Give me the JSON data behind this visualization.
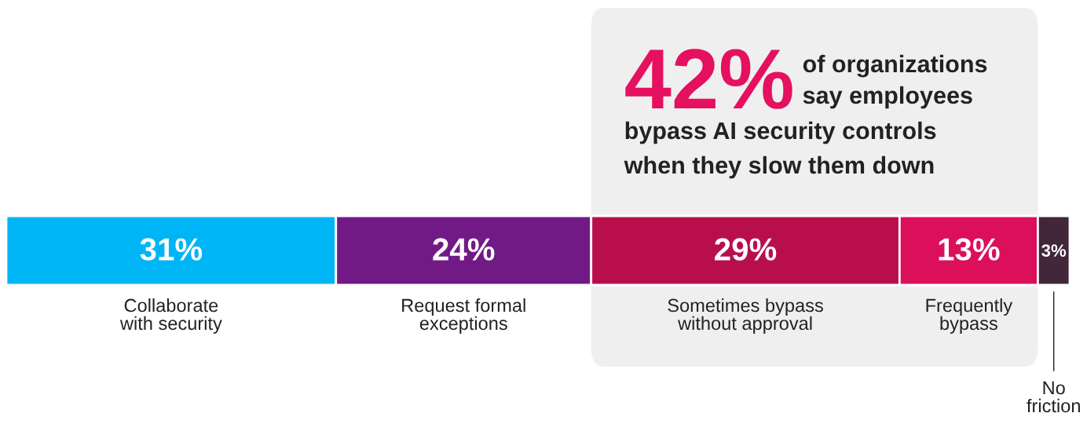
{
  "chart_data": {
    "type": "bar",
    "orientation": "horizontal",
    "stacked": true,
    "categories": [
      null
    ],
    "series": [
      {
        "name": "Collaborate\nwith security",
        "color": "#00b5f5",
        "values": [
          31
        ],
        "value_labels": [
          "31%"
        ]
      },
      {
        "name": "Request formal\nexceptions",
        "color": "#711a85",
        "values": [
          24
        ],
        "value_labels": [
          "24%"
        ]
      },
      {
        "name": "Sometimes bypass\nwithout approval",
        "color": "#b80f4c",
        "values": [
          29
        ],
        "value_labels": [
          "29%"
        ]
      },
      {
        "name": "Frequently\nbypass",
        "color": "#dc0f5a",
        "values": [
          13
        ],
        "value_labels": [
          "13%"
        ]
      },
      {
        "name": "No\nfriction",
        "color": "#42263a",
        "values": [
          3
        ],
        "value_labels": [
          "3%"
        ]
      }
    ],
    "bands": [
      {
        "axis": "x",
        "from": 55,
        "to": 97,
        "color": "#efefef"
      }
    ],
    "annotations": [
      "42%",
      "of organizations\nsay employees\nbypass AI security controls\nwhen they slow them down"
    ],
    "legend": false
  }
}
